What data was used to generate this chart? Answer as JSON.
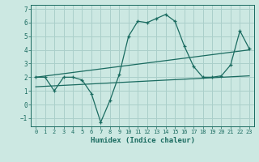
{
  "xlabel": "Humidex (Indice chaleur)",
  "xlim": [
    -0.5,
    23.5
  ],
  "ylim": [
    -1.6,
    7.3
  ],
  "yticks": [
    -1,
    0,
    1,
    2,
    3,
    4,
    5,
    6,
    7
  ],
  "xticks": [
    0,
    1,
    2,
    3,
    4,
    5,
    6,
    7,
    8,
    9,
    10,
    11,
    12,
    13,
    14,
    15,
    16,
    17,
    18,
    19,
    20,
    21,
    22,
    23
  ],
  "bg_color": "#cce8e2",
  "line_color": "#1a6b60",
  "grid_color": "#aacfca",
  "line1_x": [
    0,
    1,
    2,
    3,
    4,
    5,
    6,
    7,
    8,
    9,
    10,
    11,
    12,
    13,
    14,
    15,
    16,
    17,
    18,
    19,
    20,
    21,
    22,
    23
  ],
  "line1_y": [
    2.0,
    2.0,
    1.0,
    2.0,
    2.0,
    1.8,
    0.8,
    -1.3,
    0.3,
    2.2,
    5.0,
    6.1,
    6.0,
    6.3,
    6.6,
    6.1,
    4.3,
    2.8,
    2.0,
    2.0,
    2.1,
    2.9,
    5.4,
    4.1
  ],
  "line2_x": [
    0,
    23
  ],
  "line2_y": [
    2.0,
    4.0
  ],
  "line3_x": [
    0,
    23
  ],
  "line3_y": [
    1.3,
    2.1
  ],
  "tick_fontsize": 5.0,
  "xlabel_fontsize": 6.5
}
